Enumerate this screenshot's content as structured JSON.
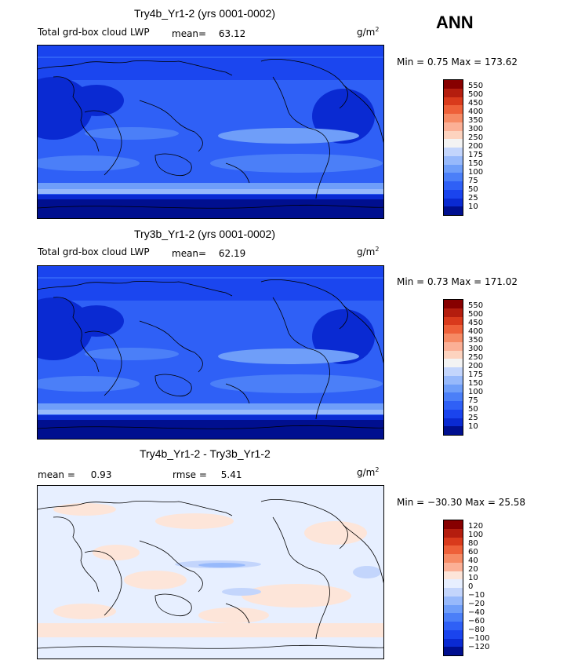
{
  "season": "ANN",
  "colors": {
    "abs_scale": [
      "#000f8f",
      "#0a2ad2",
      "#1a44ee",
      "#2f60f6",
      "#4b7ff8",
      "#6f9ef9",
      "#97b9fb",
      "#c3d5fc",
      "#f3f3f3",
      "#fdd3bf",
      "#fbb096",
      "#f68a64",
      "#ee6039",
      "#d93a1c",
      "#b41d0e",
      "#870000"
    ],
    "diff_scale": [
      "#000f8f",
      "#0a2ad2",
      "#1a44ee",
      "#2f60f6",
      "#4b7ff8",
      "#6f9ef9",
      "#97b9fb",
      "#c3d5fc",
      "#e7efff",
      "#fde5d9",
      "#fbb096",
      "#f68a64",
      "#ee6039",
      "#d93a1c",
      "#b41d0e",
      "#870000"
    ]
  },
  "panels": [
    {
      "title": "Try4b_Yr1-2 (yrs 0001-0002)",
      "field_label": "Total grd-box cloud LWP",
      "mean_label": "mean=",
      "mean_value": "63.12",
      "units": "g/m",
      "units_exp": "2",
      "minmax": "Min =   0.75 Max = 173.62",
      "legend_ticks": [
        "550",
        "500",
        "450",
        "400",
        "350",
        "300",
        "250",
        "200",
        "175",
        "150",
        "100",
        "75",
        "50",
        "25",
        "10"
      ]
    },
    {
      "title": "Try3b_Yr1-2 (yrs 0001-0002)",
      "field_label": "Total grd-box cloud LWP",
      "mean_label": "mean=",
      "mean_value": "62.19",
      "units": "g/m",
      "units_exp": "2",
      "minmax": "Min =   0.73 Max = 171.02",
      "legend_ticks": [
        "550",
        "500",
        "450",
        "400",
        "350",
        "300",
        "250",
        "200",
        "175",
        "150",
        "100",
        "75",
        "50",
        "25",
        "10"
      ]
    },
    {
      "title": "Try4b_Yr1-2 - Try3b_Yr1-2",
      "mean_label": "mean =",
      "mean_value": "0.93",
      "rmse_label": "rmse =",
      "rmse_value": "5.41",
      "units": "g/m",
      "units_exp": "2",
      "minmax": "Min = −30.30 Max =  25.58",
      "legend_ticks": [
        "120",
        "100",
        "80",
        "60",
        "40",
        "20",
        "10",
        "0",
        "−10",
        "−20",
        "−40",
        "−60",
        "−80",
        "−100",
        "−120"
      ]
    }
  ]
}
